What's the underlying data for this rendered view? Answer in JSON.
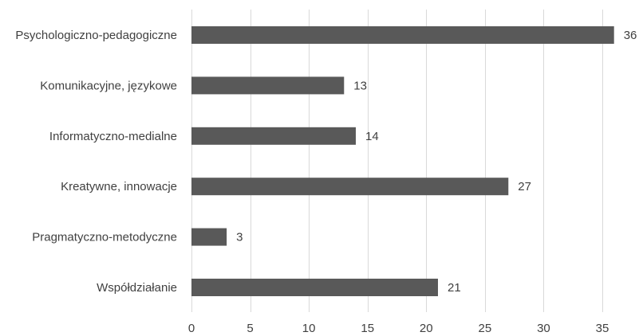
{
  "chart_data": {
    "type": "bar",
    "orientation": "horizontal",
    "title": "",
    "xlabel": "",
    "ylabel": "",
    "categories": [
      "Psychologiczno-pedagogiczne",
      "Komunikacyjne, językowe",
      "Informatyczno-medialne",
      "Kreatywne, innowacje",
      "Pragmatyczno-metodyczne",
      "Współdziałanie"
    ],
    "values": [
      36,
      13,
      14,
      27,
      3,
      21
    ],
    "xlim": [
      0,
      36.7
    ],
    "xticks": [
      0,
      5,
      10,
      15,
      20,
      25,
      30,
      35
    ],
    "xtick_labels": [
      "0",
      "5",
      "10",
      "15",
      "20",
      "25",
      "30",
      "35"
    ],
    "grid": "vertical",
    "legend": "none",
    "bar_color": "#595959",
    "grid_color": "#d9d9d9",
    "text_color": "#404040"
  }
}
